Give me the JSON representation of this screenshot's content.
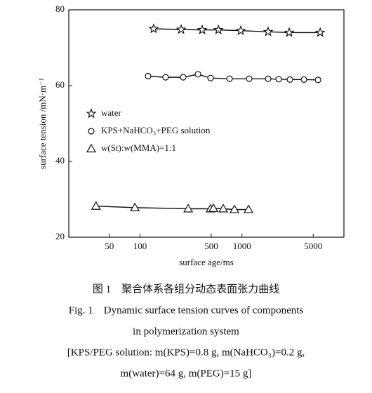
{
  "chart_data": {
    "type": "line",
    "y_label": "surface tension /mN·m⁻¹",
    "x_label": "surface age/ms",
    "log_x": true,
    "xlim": [
      20,
      10000
    ],
    "xticks": [
      50,
      100,
      500,
      1000,
      5000
    ],
    "ylim": [
      20,
      80
    ],
    "yticks": [
      20,
      40,
      60,
      80
    ],
    "series": [
      {
        "name": "water",
        "color": "#111111",
        "marker": "star",
        "x": [
          136,
          253,
          407,
          587,
          973,
          1806,
          2905,
          5850
        ],
        "values": [
          75,
          74.8,
          74.7,
          74.7,
          74.5,
          74.2,
          74.0,
          74.0
        ]
      },
      {
        "name": "KPS+NaHCO₃+PEG solution",
        "color": "#111111",
        "marker": "circle",
        "x": [
          120,
          178,
          265,
          370,
          492,
          755,
          1177,
          1806,
          2291,
          2951,
          4055,
          5570
        ],
        "values": [
          62.5,
          62.2,
          62.2,
          63,
          62,
          61.8,
          61.8,
          61.8,
          61.7,
          61.6,
          61.6,
          61.5
        ]
      },
      {
        "name": "w(St):w(MMA)=1:1",
        "color": "#111111",
        "marker": "triangle",
        "x": [
          37,
          89,
          297,
          492,
          525,
          655,
          843,
          1159
        ],
        "values": [
          28.2,
          27.8,
          27.5,
          27.5,
          27.6,
          27.5,
          27.3,
          27.3
        ]
      }
    ],
    "caption": [
      "图 1　聚合体系各组分动态表面张力曲线",
      "Fig. 1　Dynamic surface tension curves of components",
      "in polymerization system",
      "[KPS/PEG solution: m(KPS)=0.8 g, m(NaHCO₃)=0.2 g,",
      "m(water)=64 g, m(PEG)=15 g]"
    ]
  }
}
